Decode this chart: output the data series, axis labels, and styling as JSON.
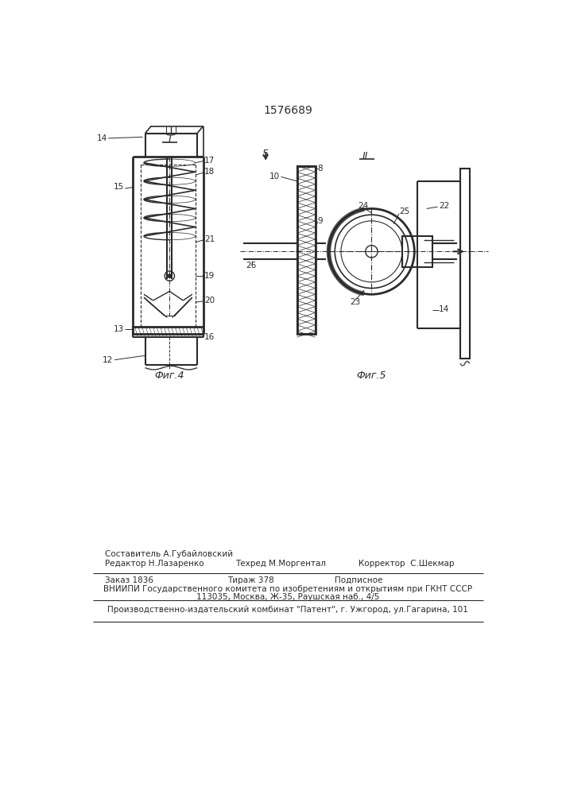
{
  "title": "1576689",
  "background_color": "#ffffff",
  "fig_width": 7.07,
  "fig_height": 10.0,
  "footer_line1_left": "Редактор Н.Лазаренко",
  "footer_line1_center_top": "Составитель А.Губайловский",
  "footer_line1_center_bot": "Техред М.Моргентал",
  "footer_line1_right": "Корректор  С.Шекмар",
  "footer_line2_col1": "Заказ 1836",
  "footer_line2_col2": "Тираж 378",
  "footer_line2_col3": "Подписное",
  "footer_line3": "ВНИИПИ Государственного комитета по изобретениям и открытиям при ГКНТ СССР",
  "footer_line4": "113035, Москва, Ж-35, Раушская наб., 4/5",
  "footer_line5": "Производственно-издательский комбинат \"Патент\", г. Ужгород, ул.Гагарина, 101",
  "fig4_label": "Фиг.4",
  "fig5_label": "Фиг.5",
  "line_color": "#2a2a2a"
}
